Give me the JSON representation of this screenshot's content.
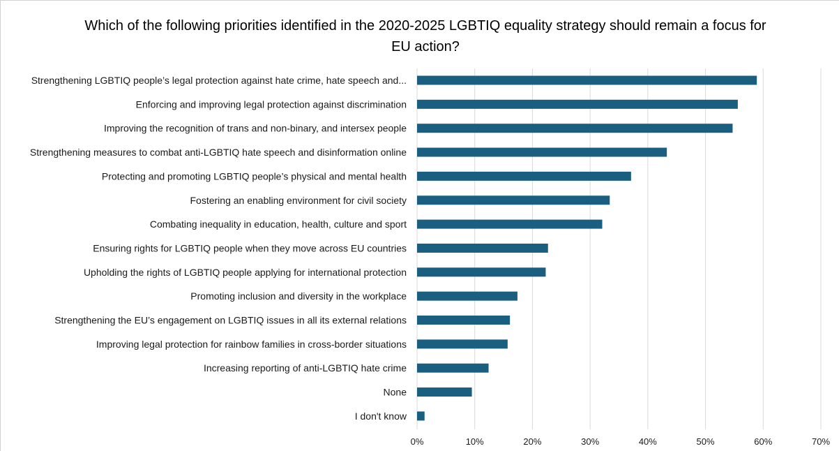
{
  "chart_data": {
    "type": "bar",
    "orientation": "horizontal",
    "title": "Which of the following priorities identified in the 2020-2025 LGBTIQ equality strategy should remain a focus for EU action?",
    "categories": [
      "Strengthening LGBTIQ people’s legal protection against hate crime, hate speech and...",
      "Enforcing and improving legal protection against discrimination",
      "Improving the recognition of trans and non-binary, and intersex people",
      "Strengthening measures to combat anti-LGBTIQ hate speech and disinformation online",
      "Protecting and promoting LGBTIQ people’s physical and mental health",
      "Fostering an enabling environment for civil society",
      "Combating inequality in education, health, culture and sport",
      "Ensuring rights for LGBTIQ people when they move across EU countries",
      "Upholding the rights of LGBTIQ people applying for international protection",
      "Promoting inclusion and diversity in the workplace",
      "Strengthening the EU’s engagement on LGBTIQ issues in all its external relations",
      "Improving legal protection for rainbow families in cross-border situations",
      "Increasing reporting of anti-LGBTIQ hate crime",
      "None",
      "I don't know"
    ],
    "values": [
      58.9,
      55.6,
      54.7,
      43.3,
      37.1,
      33.4,
      32.1,
      22.7,
      22.3,
      17.4,
      16.1,
      15.7,
      12.4,
      9.5,
      1.3
    ],
    "xlim": [
      0,
      70
    ],
    "xticks": [
      "0%",
      "10%",
      "20%",
      "30%",
      "40%",
      "50%",
      "60%",
      "70%"
    ],
    "xlabel": "",
    "ylabel": "",
    "grid": "vertical",
    "legend": "none",
    "bar_color": "#1b5f80",
    "grid_color": "#d9d9d9"
  }
}
